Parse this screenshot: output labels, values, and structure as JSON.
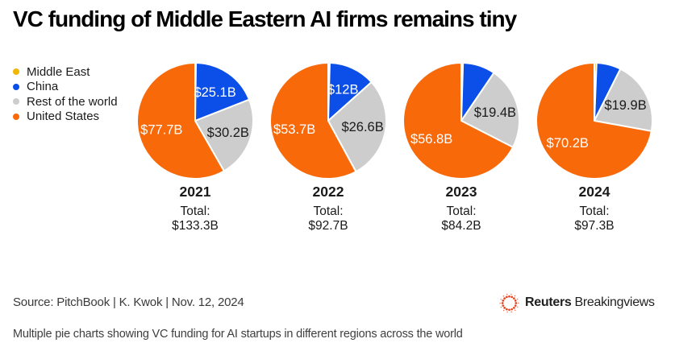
{
  "title": "VC funding of Middle Eastern AI firms remains tiny",
  "legend": [
    {
      "key": "middle_east",
      "label": "Middle East"
    },
    {
      "key": "china",
      "label": "China"
    },
    {
      "key": "rest_of_world",
      "label": "Rest of the world"
    },
    {
      "key": "united_states",
      "label": "United States"
    }
  ],
  "chart_data": {
    "type": "pie",
    "unit": "USD billions",
    "legend_position": "left",
    "start_angle": "12 o'clock, clockwise",
    "slice_order": [
      "middle_east",
      "china",
      "rest_of_world",
      "united_states"
    ],
    "colors": {
      "middle_east": {
        "fill": "#F2B705",
        "label_color": "#ffffff"
      },
      "china": {
        "fill": "#0C4FE8",
        "label_color": "#ffffff"
      },
      "rest_of_world": {
        "fill": "#CDCDCD",
        "label_color": "#1a1a1a"
      },
      "united_states": {
        "fill": "#F8690A",
        "label_color": "#ffffff"
      }
    },
    "pies": [
      {
        "year": "2021",
        "total_label": "Total:",
        "total_value": "$133.3B",
        "total": 133.3,
        "slices": [
          {
            "region": "Middle East",
            "key": "middle_east",
            "value": 0.3,
            "label": ""
          },
          {
            "region": "China",
            "key": "china",
            "value": 25.1,
            "label": "$25.1B"
          },
          {
            "region": "Rest of the world",
            "key": "rest_of_world",
            "value": 30.2,
            "label": "$30.2B"
          },
          {
            "region": "United States",
            "key": "united_states",
            "value": 77.7,
            "label": "$77.7B"
          }
        ]
      },
      {
        "year": "2022",
        "total_label": "Total:",
        "total_value": "$92.7B",
        "total": 92.7,
        "slices": [
          {
            "region": "Middle East",
            "key": "middle_east",
            "value": 0.4,
            "label": ""
          },
          {
            "region": "China",
            "key": "china",
            "value": 12,
            "label": "$12B"
          },
          {
            "region": "Rest of the world",
            "key": "rest_of_world",
            "value": 26.6,
            "label": "$26.6B"
          },
          {
            "region": "United States",
            "key": "united_states",
            "value": 53.7,
            "label": "$53.7B"
          }
        ]
      },
      {
        "year": "2023",
        "total_label": "Total:",
        "total_value": "$84.2B",
        "total": 84.2,
        "slices": [
          {
            "region": "Middle East",
            "key": "middle_east",
            "value": 0.4,
            "label": ""
          },
          {
            "region": "China",
            "key": "china",
            "value": 7.6,
            "label": ""
          },
          {
            "region": "Rest of the world",
            "key": "rest_of_world",
            "value": 19.4,
            "label": "$19.4B"
          },
          {
            "region": "United States",
            "key": "united_states",
            "value": 56.8,
            "label": "$56.8B"
          }
        ]
      },
      {
        "year": "2024",
        "total_label": "Total:",
        "total_value": "$97.3B",
        "total": 97.3,
        "slices": [
          {
            "region": "Middle East",
            "key": "middle_east",
            "value": 0.6,
            "label": ""
          },
          {
            "region": "China",
            "key": "china",
            "value": 6.6,
            "label": ""
          },
          {
            "region": "Rest of the world",
            "key": "rest_of_world",
            "value": 19.9,
            "label": "$19.9B"
          },
          {
            "region": "United States",
            "key": "united_states",
            "value": 70.2,
            "label": "$70.2B"
          }
        ]
      }
    ]
  },
  "footer": {
    "source": "Source: PitchBook | K. Kwok | Nov. 12, 2024",
    "logo_bold": "Reuters",
    "logo_regular": "Breakingviews",
    "logo_color": "#E8431F",
    "caption": "Multiple pie charts showing VC funding for AI startups in different regions across the world"
  }
}
